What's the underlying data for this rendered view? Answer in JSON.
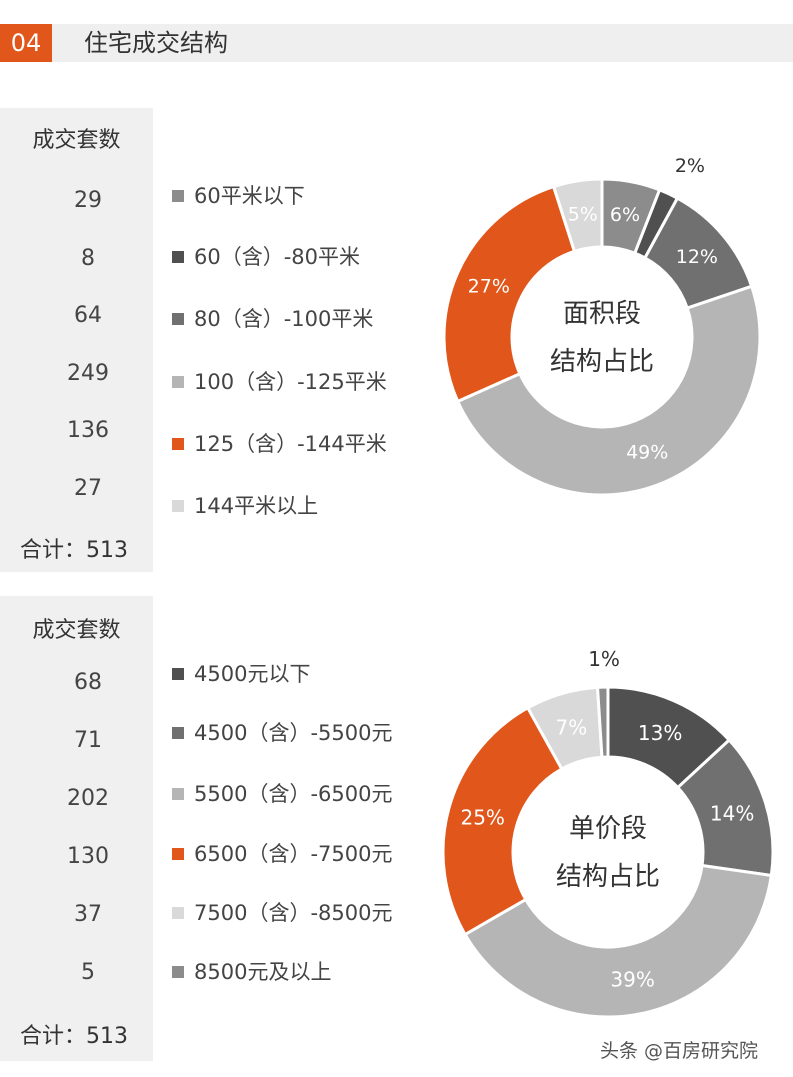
{
  "header": {
    "number": "04",
    "title": "住宅成交结构"
  },
  "watermark": "头条 @百房研究院",
  "area_panel": {
    "header": "成交套数",
    "counts": [
      "29",
      "8",
      "64",
      "249",
      "136",
      "27"
    ],
    "total": "合计：513"
  },
  "price_panel": {
    "header": "成交套数",
    "counts": [
      "68",
      "71",
      "202",
      "130",
      "37",
      "5"
    ],
    "total": "合计：513"
  },
  "chart_data": [
    {
      "type": "pie",
      "title": "面积段结构占比",
      "center_label": [
        "面积段",
        "结构占比"
      ],
      "categories": [
        "60平米以下",
        "60（含）-80平米",
        "80（含）-100平米",
        "100（含）-125平米",
        "125（含）-144平米",
        "144平米以上"
      ],
      "values": [
        6,
        2,
        12,
        49,
        27,
        5
      ],
      "labels": [
        "6%",
        "2%",
        "12%",
        "49%",
        "27%",
        "5%"
      ],
      "colors": [
        "#8c8c8c",
        "#505050",
        "#707070",
        "#b5b5b5",
        "#e0561b",
        "#d9d9d9"
      ],
      "legend_position": "left"
    },
    {
      "type": "pie",
      "title": "单价段结构占比",
      "center_label": [
        "单价段",
        "结构占比"
      ],
      "categories": [
        "4500元以下",
        "4500（含）-5500元",
        "5500（含）-6500元",
        "6500（含）-7500元",
        "7500（含）-8500元",
        "8500元及以上"
      ],
      "values": [
        13,
        14,
        39,
        25,
        7,
        1
      ],
      "labels": [
        "13%",
        "14%",
        "39%",
        "25%",
        "7%",
        "1%"
      ],
      "colors": [
        "#505050",
        "#707070",
        "#b5b5b5",
        "#e0561b",
        "#d9d9d9",
        "#8c8c8c"
      ],
      "legend_position": "left"
    }
  ]
}
